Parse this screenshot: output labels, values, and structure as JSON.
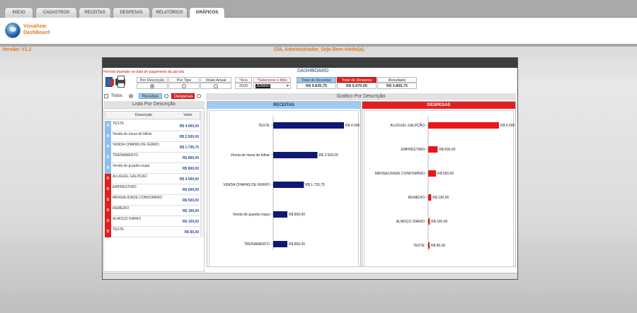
{
  "tabs": [
    {
      "label": "INÍCIO",
      "active": false
    },
    {
      "label": "CADASTROS",
      "active": false
    },
    {
      "label": "RECEITAS",
      "active": false
    },
    {
      "label": "DESPESAS",
      "active": false
    },
    {
      "label": "RELATÓRIOS",
      "active": false
    },
    {
      "label": "GRÁFICOS",
      "active": true
    }
  ],
  "header": {
    "logo_line1": "Visualizar",
    "logo_line2": "DashBoard"
  },
  "status": {
    "version": "Versão: V1.1",
    "welcome": "Olá, Administrador, Seja Bem vindo(a)."
  },
  "dashboard": {
    "periodo_note": "Período baseado na data de pagamento da parcela",
    "title": "DASHBOARD",
    "view_options": {
      "por_descricao": "Por Descrição",
      "por_tipo": "Por Tipo",
      "visao_anual": "Visão Anual",
      "selected": "Por Descrição"
    },
    "ano_label": "*Ano",
    "ano_value": "2020",
    "mes_label": "*Selecione o Mês",
    "mes_value": "JUNHO",
    "total_receitas_label": "Total de Receitas",
    "total_receitas_value": "R$ 9.835,75",
    "total_despesas_label": "Total de Despesa",
    "total_despesas_value": "R$ 5.970,00",
    "resultado_label": "Resultado",
    "resultado_value": "R$ 3.865,75"
  },
  "filters": {
    "todos": "Todos",
    "receitas": "Receitas",
    "despesas": "Despesas",
    "selected": "Todos"
  },
  "grafico_title": "Grafico Por Descrição",
  "lista": {
    "title": "Lista Por Descrição",
    "col_descricao": "Descrição",
    "col_valor": "Valor",
    "rows": [
      {
        "tipo": "R",
        "desc": "TESTE",
        "valor": "R$ 4.000,00"
      },
      {
        "tipo": "R",
        "desc": "Venda de mesa de bilhar",
        "valor": "R$ 2.500,00"
      },
      {
        "tipo": "R",
        "desc": "VENDA CHAPAS DE FERRO",
        "valor": "R$ 1.735,75"
      },
      {
        "tipo": "R",
        "desc": "TREINAMENTO",
        "valor": "R$ 800,00"
      },
      {
        "tipo": "R",
        "desc": "Venda de guarda roupa",
        "valor": "R$ 800,00"
      },
      {
        "tipo": "D",
        "desc": "ALUGUEL GALPÇÃO",
        "valor": "R$ 4.500,00"
      },
      {
        "tipo": "D",
        "desc": "EMPRÉSTIMO",
        "valor": "R$ 600,00"
      },
      {
        "tipo": "D",
        "desc": "MENSALIDADE CONDOMÍNIO",
        "valor": "R$ 500,00"
      },
      {
        "tipo": "D",
        "desc": "REMÉDIO",
        "valor": "R$ 190,00"
      },
      {
        "tipo": "D",
        "desc": "ALMOÇO DIÁRIO",
        "valor": "R$ 100,00"
      },
      {
        "tipo": "D",
        "desc": "TESTE",
        "valor": "R$ 80,00"
      }
    ]
  },
  "colors": {
    "receita": "#0f1875",
    "despesa": "#e8171c",
    "receita_header": "#9fcaf2",
    "despesa_header": "#e02020",
    "accent": "#e07a1e"
  },
  "chart_data": [
    {
      "type": "bar",
      "orientation": "horizontal",
      "title": "RECEITAS",
      "categories": [
        "TESTE",
        "Venda de mesa de bilhar",
        "VENDA CHAPAS DE FERRO",
        "Venda de guarda roupa",
        "TREINAMENTO"
      ],
      "values": [
        4000,
        2500,
        1735.75,
        800,
        800
      ],
      "labels": [
        "R$ 4.000,00",
        "R$ 2.500,00",
        "R$ 1.735,75",
        "R$ 800,00",
        "R$ 800,00"
      ],
      "color": "#0f1875"
    },
    {
      "type": "bar",
      "orientation": "horizontal",
      "title": "DESPESAS",
      "categories": [
        "ALUGUEL GALPÇÃO",
        "EMPRÉSTIMO",
        "MENSALIDADE CONDOMÍNIO",
        "REMÉDIO",
        "ALMOÇO DIÁRIO",
        "TESTE"
      ],
      "values": [
        4500,
        600,
        500,
        190,
        100,
        80
      ],
      "labels": [
        "R$ 4.500,00",
        "R$ 600,00",
        "R$ 500,00",
        "R$ 190,00",
        "R$ 100,00",
        "R$ 80,00"
      ],
      "color": "#e8171c"
    }
  ]
}
